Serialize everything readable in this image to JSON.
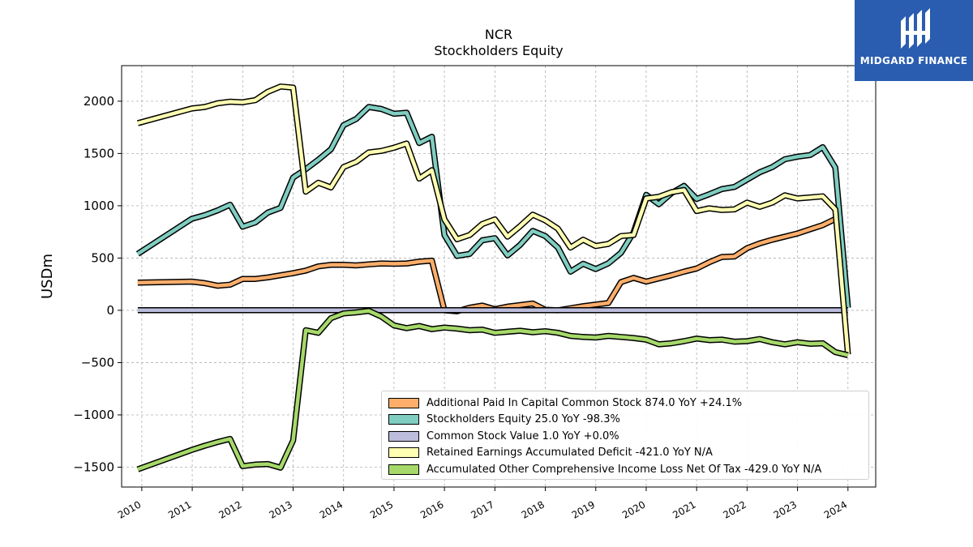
{
  "header": {
    "title": "NCR",
    "subtitle": "Stockholders  Equity"
  },
  "logo": {
    "text": "MIDGARD FINANCE",
    "icon": "midgard-logo-icon"
  },
  "chart_data": {
    "type": "line",
    "title": "NCR",
    "subtitle": "Stockholders  Equity",
    "xlabel": "",
    "ylabel": "USDm",
    "xlim": [
      2009.6,
      2024.55
    ],
    "ylim": [
      -1690,
      2340
    ],
    "x_ticks": [
      2010,
      2011,
      2012,
      2013,
      2014,
      2015,
      2016,
      2017,
      2018,
      2019,
      2020,
      2021,
      2022,
      2023,
      2024
    ],
    "x_tick_labels": [
      "2010",
      "2011",
      "2012",
      "2013",
      "2014",
      "2015",
      "2016",
      "2017",
      "2018",
      "2019",
      "2020",
      "2021",
      "2022",
      "2023",
      "2024"
    ],
    "y_ticks": [
      -1500,
      -1000,
      -500,
      0,
      500,
      1000,
      1500,
      2000
    ],
    "y_tick_labels": [
      "−1500",
      "−1000",
      "−500",
      "0",
      "500",
      "1000",
      "1500",
      "2000"
    ],
    "grid": true,
    "legend_position": "lower-right",
    "series": [
      {
        "name": "Additional Paid In Capital Common Stock  874.0 YoY +24.1%",
        "color": "#fdae6b",
        "points": [
          [
            2009.92,
            265
          ],
          [
            2010.99,
            275
          ],
          [
            2011.25,
            260
          ],
          [
            2011.5,
            235
          ],
          [
            2011.75,
            245
          ],
          [
            2012.0,
            300
          ],
          [
            2012.25,
            300
          ],
          [
            2012.5,
            315
          ],
          [
            2012.75,
            335
          ],
          [
            2013.0,
            355
          ],
          [
            2013.25,
            380
          ],
          [
            2013.5,
            420
          ],
          [
            2013.75,
            435
          ],
          [
            2014.0,
            435
          ],
          [
            2014.25,
            430
          ],
          [
            2014.5,
            440
          ],
          [
            2014.75,
            448
          ],
          [
            2015.0,
            445
          ],
          [
            2015.25,
            448
          ],
          [
            2015.5,
            465
          ],
          [
            2015.75,
            475
          ],
          [
            2016.0,
            0
          ],
          [
            2016.25,
            -10
          ],
          [
            2016.5,
            25
          ],
          [
            2016.75,
            45
          ],
          [
            2017.0,
            10
          ],
          [
            2017.25,
            35
          ],
          [
            2017.5,
            50
          ],
          [
            2017.75,
            65
          ],
          [
            2018.0,
            5
          ],
          [
            2018.25,
            0
          ],
          [
            2018.5,
            20
          ],
          [
            2018.75,
            40
          ],
          [
            2019.0,
            55
          ],
          [
            2019.25,
            70
          ],
          [
            2019.5,
            270
          ],
          [
            2019.75,
            310
          ],
          [
            2020.0,
            275
          ],
          [
            2020.25,
            305
          ],
          [
            2020.5,
            335
          ],
          [
            2020.75,
            370
          ],
          [
            2021.0,
            400
          ],
          [
            2021.25,
            460
          ],
          [
            2021.5,
            510
          ],
          [
            2021.75,
            515
          ],
          [
            2022.0,
            595
          ],
          [
            2022.25,
            640
          ],
          [
            2022.5,
            675
          ],
          [
            2022.75,
            705
          ],
          [
            2023.0,
            735
          ],
          [
            2023.25,
            775
          ],
          [
            2023.5,
            815
          ],
          [
            2023.75,
            874
          ]
        ]
      },
      {
        "name": "Stockholders Equity  25.0 YoY -98.3%",
        "color": "#80cdc1",
        "points": [
          [
            2009.92,
            540
          ],
          [
            2010.99,
            875
          ],
          [
            2011.25,
            910
          ],
          [
            2011.5,
            955
          ],
          [
            2011.75,
            1010
          ],
          [
            2012.0,
            800
          ],
          [
            2012.25,
            840
          ],
          [
            2012.5,
            935
          ],
          [
            2012.75,
            980
          ],
          [
            2013.0,
            1270
          ],
          [
            2013.25,
            1350
          ],
          [
            2013.5,
            1440
          ],
          [
            2013.75,
            1540
          ],
          [
            2014.0,
            1770
          ],
          [
            2014.25,
            1830
          ],
          [
            2014.5,
            1945
          ],
          [
            2014.75,
            1925
          ],
          [
            2015.0,
            1880
          ],
          [
            2015.25,
            1890
          ],
          [
            2015.5,
            1600
          ],
          [
            2015.75,
            1660
          ],
          [
            2016.0,
            720
          ],
          [
            2016.25,
            520
          ],
          [
            2016.5,
            540
          ],
          [
            2016.75,
            670
          ],
          [
            2017.0,
            690
          ],
          [
            2017.25,
            525
          ],
          [
            2017.5,
            625
          ],
          [
            2017.75,
            760
          ],
          [
            2018.0,
            710
          ],
          [
            2018.25,
            600
          ],
          [
            2018.5,
            370
          ],
          [
            2018.75,
            445
          ],
          [
            2019.0,
            395
          ],
          [
            2019.25,
            450
          ],
          [
            2019.5,
            550
          ],
          [
            2019.75,
            745
          ],
          [
            2020.0,
            1105
          ],
          [
            2020.25,
            1015
          ],
          [
            2020.5,
            1120
          ],
          [
            2020.75,
            1190
          ],
          [
            2021.0,
            1065
          ],
          [
            2021.25,
            1110
          ],
          [
            2021.5,
            1160
          ],
          [
            2021.75,
            1180
          ],
          [
            2022.0,
            1250
          ],
          [
            2022.25,
            1320
          ],
          [
            2022.5,
            1370
          ],
          [
            2022.75,
            1445
          ],
          [
            2023.0,
            1470
          ],
          [
            2023.25,
            1485
          ],
          [
            2023.5,
            1560
          ],
          [
            2023.75,
            1365
          ],
          [
            2024.0,
            25
          ]
        ]
      },
      {
        "name": "Common Stock Value  1.0 YoY +0.0%",
        "color": "#bcbddc",
        "points": [
          [
            2009.92,
            1
          ],
          [
            2024.0,
            1
          ]
        ]
      },
      {
        "name": "Retained Earnings Accumulated Deficit  -421.0 YoY N/A",
        "color": "#ffffb3",
        "points": [
          [
            2009.92,
            1790
          ],
          [
            2010.99,
            1930
          ],
          [
            2011.25,
            1945
          ],
          [
            2011.5,
            1980
          ],
          [
            2011.75,
            1995
          ],
          [
            2012.0,
            1990
          ],
          [
            2012.25,
            2010
          ],
          [
            2012.5,
            2090
          ],
          [
            2012.75,
            2140
          ],
          [
            2013.0,
            2130
          ],
          [
            2013.25,
            1135
          ],
          [
            2013.5,
            1220
          ],
          [
            2013.75,
            1175
          ],
          [
            2014.0,
            1370
          ],
          [
            2014.25,
            1420
          ],
          [
            2014.5,
            1510
          ],
          [
            2014.75,
            1525
          ],
          [
            2015.0,
            1555
          ],
          [
            2015.25,
            1595
          ],
          [
            2015.5,
            1260
          ],
          [
            2015.75,
            1340
          ],
          [
            2016.0,
            870
          ],
          [
            2016.25,
            680
          ],
          [
            2016.5,
            720
          ],
          [
            2016.75,
            825
          ],
          [
            2017.0,
            870
          ],
          [
            2017.25,
            705
          ],
          [
            2017.5,
            805
          ],
          [
            2017.75,
            915
          ],
          [
            2018.0,
            860
          ],
          [
            2018.25,
            780
          ],
          [
            2018.5,
            600
          ],
          [
            2018.75,
            675
          ],
          [
            2019.0,
            615
          ],
          [
            2019.25,
            635
          ],
          [
            2019.5,
            710
          ],
          [
            2019.75,
            720
          ],
          [
            2020.0,
            1070
          ],
          [
            2020.25,
            1085
          ],
          [
            2020.5,
            1130
          ],
          [
            2020.75,
            1150
          ],
          [
            2021.0,
            950
          ],
          [
            2021.25,
            975
          ],
          [
            2021.5,
            960
          ],
          [
            2021.75,
            965
          ],
          [
            2022.0,
            1030
          ],
          [
            2022.25,
            990
          ],
          [
            2022.5,
            1030
          ],
          [
            2022.75,
            1100
          ],
          [
            2023.0,
            1070
          ],
          [
            2023.25,
            1080
          ],
          [
            2023.5,
            1090
          ],
          [
            2023.75,
            965
          ],
          [
            2024.0,
            -421
          ]
        ]
      },
      {
        "name": "Accumulated Other Comprehensive Income Loss Net Of Tax  -429.0 YoY N/A",
        "color": "#a6d96a",
        "points": [
          [
            2009.92,
            -1520
          ],
          [
            2010.99,
            -1335
          ],
          [
            2011.25,
            -1295
          ],
          [
            2011.5,
            -1260
          ],
          [
            2011.75,
            -1230
          ],
          [
            2012.0,
            -1490
          ],
          [
            2012.25,
            -1475
          ],
          [
            2012.5,
            -1470
          ],
          [
            2012.75,
            -1505
          ],
          [
            2013.0,
            -1245
          ],
          [
            2013.25,
            -190
          ],
          [
            2013.5,
            -215
          ],
          [
            2013.75,
            -75
          ],
          [
            2014.0,
            -30
          ],
          [
            2014.25,
            -20
          ],
          [
            2014.5,
            -5
          ],
          [
            2014.75,
            -60
          ],
          [
            2015.0,
            -145
          ],
          [
            2015.25,
            -170
          ],
          [
            2015.5,
            -150
          ],
          [
            2015.75,
            -180
          ],
          [
            2016.0,
            -165
          ],
          [
            2016.25,
            -175
          ],
          [
            2016.5,
            -190
          ],
          [
            2016.75,
            -185
          ],
          [
            2017.0,
            -215
          ],
          [
            2017.25,
            -205
          ],
          [
            2017.5,
            -195
          ],
          [
            2017.75,
            -210
          ],
          [
            2018.0,
            -200
          ],
          [
            2018.25,
            -215
          ],
          [
            2018.5,
            -245
          ],
          [
            2018.75,
            -255
          ],
          [
            2019.0,
            -260
          ],
          [
            2019.25,
            -245
          ],
          [
            2019.5,
            -255
          ],
          [
            2019.75,
            -265
          ],
          [
            2020.0,
            -280
          ],
          [
            2020.25,
            -325
          ],
          [
            2020.5,
            -315
          ],
          [
            2020.75,
            -295
          ],
          [
            2021.0,
            -270
          ],
          [
            2021.25,
            -285
          ],
          [
            2021.5,
            -280
          ],
          [
            2021.75,
            -300
          ],
          [
            2022.0,
            -295
          ],
          [
            2022.25,
            -275
          ],
          [
            2022.5,
            -305
          ],
          [
            2022.75,
            -325
          ],
          [
            2023.0,
            -305
          ],
          [
            2023.25,
            -320
          ],
          [
            2023.5,
            -315
          ],
          [
            2023.75,
            -400
          ],
          [
            2024.0,
            -429
          ]
        ]
      }
    ]
  }
}
